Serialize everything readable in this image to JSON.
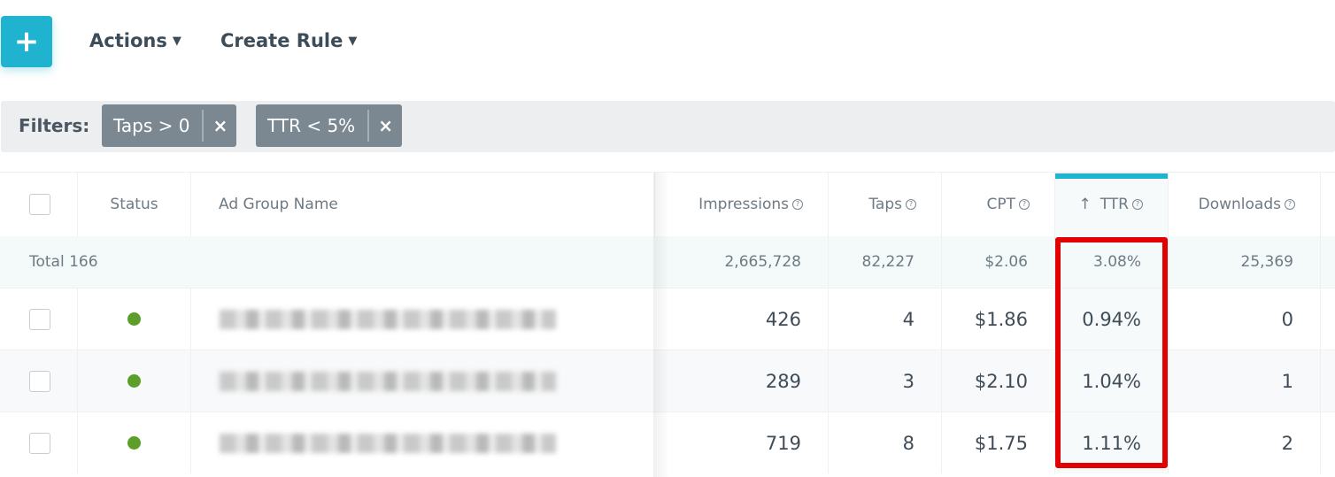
{
  "toolbar": {
    "add_icon": "+",
    "actions_label": "Actions",
    "create_rule_label": "Create Rule"
  },
  "filters": {
    "label": "Filters:",
    "chips": [
      {
        "label": "Taps > 0"
      },
      {
        "label": "TTR < 5%"
      }
    ],
    "remove_icon": "×"
  },
  "table": {
    "headers": {
      "status": "Status",
      "name": "Ad Group Name",
      "impressions": "Impressions",
      "taps": "Taps",
      "cpt": "CPT",
      "ttr": "TTR",
      "downloads": "Downloads",
      "sort_icon": "↑",
      "help_icon": "?"
    },
    "total": {
      "label": "Total 166",
      "impressions": "2,665,728",
      "taps": "82,227",
      "cpt": "$2.06",
      "ttr": "3.08%",
      "downloads": "25,369"
    },
    "rows": [
      {
        "status": "active",
        "impressions": "426",
        "taps": "4",
        "cpt": "$1.86",
        "ttr": "0.94%",
        "downloads": "0"
      },
      {
        "status": "active",
        "impressions": "289",
        "taps": "3",
        "cpt": "$2.10",
        "ttr": "1.04%",
        "downloads": "1"
      },
      {
        "status": "active",
        "impressions": "719",
        "taps": "8",
        "cpt": "$1.75",
        "ttr": "1.11%",
        "downloads": "2"
      }
    ]
  },
  "colors": {
    "accent": "#1fb3d0",
    "highlight": "#e30000",
    "status_active": "#5d9e2a"
  }
}
